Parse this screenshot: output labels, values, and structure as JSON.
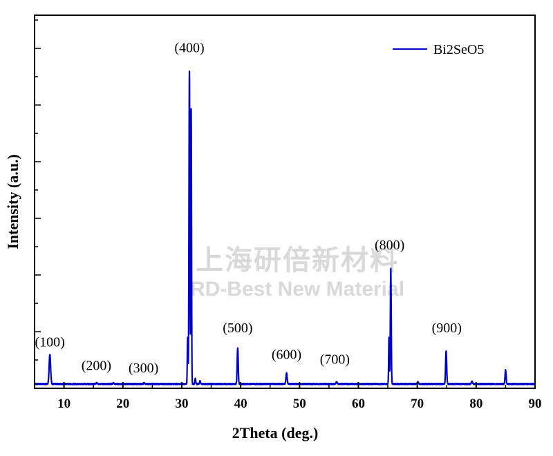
{
  "chart_data": {
    "type": "line",
    "title": "",
    "xlabel": "2Theta (deg.)",
    "ylabel": "Intensity (a.u.)",
    "xlim": [
      5,
      90
    ],
    "ylim": [
      0,
      100
    ],
    "x_ticks": [
      10,
      20,
      30,
      40,
      50,
      60,
      70,
      80,
      90
    ],
    "y_ticks_labeled": false,
    "grid": false,
    "legend_position": "top-right",
    "series": [
      {
        "name": "Bi2SeO5",
        "color": "#0000cc",
        "baseline": 0.5,
        "peaks": [
          {
            "x": 7.6,
            "y": 9.5,
            "width": 0.25
          },
          {
            "x": 15.6,
            "y": 0.4,
            "width": 0.2
          },
          {
            "x": 18.4,
            "y": 0.3,
            "width": 0.2
          },
          {
            "x": 23.6,
            "y": 0.3,
            "width": 0.2
          },
          {
            "x": 31.0,
            "y": 15.0,
            "width": 0.12
          },
          {
            "x": 31.3,
            "y": 100.0,
            "width": 0.15
          },
          {
            "x": 31.6,
            "y": 88.0,
            "width": 0.12
          },
          {
            "x": 32.3,
            "y": 1.8,
            "width": 0.15
          },
          {
            "x": 33.1,
            "y": 1.0,
            "width": 0.15
          },
          {
            "x": 39.5,
            "y": 11.5,
            "width": 0.18
          },
          {
            "x": 47.8,
            "y": 3.5,
            "width": 0.2
          },
          {
            "x": 56.3,
            "y": 0.6,
            "width": 0.2
          },
          {
            "x": 65.2,
            "y": 15.0,
            "width": 0.12
          },
          {
            "x": 65.5,
            "y": 37.0,
            "width": 0.15
          },
          {
            "x": 70.1,
            "y": 0.6,
            "width": 0.2
          },
          {
            "x": 74.9,
            "y": 10.5,
            "width": 0.18
          },
          {
            "x": 79.3,
            "y": 0.8,
            "width": 0.2
          },
          {
            "x": 85.0,
            "y": 4.5,
            "width": 0.18
          }
        ]
      }
    ],
    "annotations": [
      {
        "text": "(100)",
        "x": 7.6,
        "y": 12.5
      },
      {
        "text": "(200)",
        "x": 15.5,
        "y": 5.0
      },
      {
        "text": "(300)",
        "x": 23.5,
        "y": 4.2
      },
      {
        "text": "(400)",
        "x": 31.3,
        "y": 106.5
      },
      {
        "text": "(500)",
        "x": 39.5,
        "y": 17.0
      },
      {
        "text": "(600)",
        "x": 47.8,
        "y": 8.5
      },
      {
        "text": "(700)",
        "x": 56.0,
        "y": 7.0
      },
      {
        "text": "(800)",
        "x": 65.3,
        "y": 43.5
      },
      {
        "text": "(900)",
        "x": 75.0,
        "y": 17.0
      }
    ]
  },
  "watermark": {
    "line1": "上海研倍新材料",
    "line2": "RD-Best New Material"
  }
}
